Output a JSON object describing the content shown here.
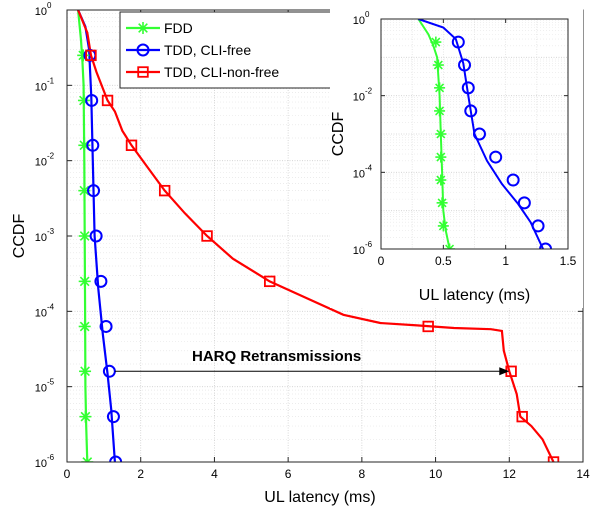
{
  "chart_data": [
    {
      "type": "line",
      "xlabel": "UL latency (ms)",
      "ylabel": "CCDF",
      "xlim": [
        0,
        14
      ],
      "ylim": [
        1e-06,
        1
      ],
      "yscale": "log",
      "grid": true,
      "legend_position": "top-left",
      "xticks": [
        "0",
        "2",
        "4",
        "6",
        "8",
        "10",
        "12",
        "14"
      ],
      "yticks": [
        {
          "base": "10",
          "exp": "-6"
        },
        {
          "base": "10",
          "exp": "-5"
        },
        {
          "base": "10",
          "exp": "-4"
        },
        {
          "base": "10",
          "exp": "-3"
        },
        {
          "base": "10",
          "exp": "-2"
        },
        {
          "base": "10",
          "exp": "-1"
        },
        {
          "base": "10",
          "exp": "0"
        }
      ],
      "annotation": {
        "text": "HARQ Retransmissions",
        "arrow_from": [
          1.3,
          1.6e-05
        ],
        "arrow_to": [
          12.0,
          1.6e-05
        ]
      },
      "series": [
        {
          "name": "FDD",
          "color": "#33ff33",
          "marker": "asterisk",
          "line": [
            [
              0.3,
              1
            ],
            [
              0.38,
              0.4
            ],
            [
              0.42,
              0.2
            ],
            [
              0.45,
              0.1
            ],
            [
              0.47,
              0.01
            ],
            [
              0.48,
              0.001
            ],
            [
              0.49,
              0.0001
            ],
            [
              0.5,
              1e-05
            ],
            [
              0.52,
              3e-06
            ],
            [
              0.55,
              1e-06
            ]
          ],
          "markers": [
            [
              0.44,
              0.25
            ],
            [
              0.46,
              0.063
            ],
            [
              0.47,
              0.016
            ],
            [
              0.47,
              0.004
            ],
            [
              0.48,
              0.001
            ],
            [
              0.48,
              0.00025
            ],
            [
              0.48,
              6.3e-05
            ],
            [
              0.49,
              1.6e-05
            ],
            [
              0.5,
              4e-06
            ],
            [
              0.55,
              1e-06
            ]
          ]
        },
        {
          "name": "TDD, CLI-free",
          "color": "#0000ff",
          "marker": "circle",
          "line": [
            [
              0.3,
              1
            ],
            [
              0.5,
              0.6
            ],
            [
              0.6,
              0.3
            ],
            [
              0.66,
              0.07
            ],
            [
              0.7,
              0.01
            ],
            [
              0.75,
              0.001
            ],
            [
              0.85,
              0.0002
            ],
            [
              0.97,
              5e-05
            ],
            [
              1.1,
              1.5e-05
            ],
            [
              1.2,
              5e-06
            ],
            [
              1.3,
              1e-06
            ]
          ],
          "markers": [
            [
              0.62,
              0.25
            ],
            [
              0.67,
              0.063
            ],
            [
              0.7,
              0.016
            ],
            [
              0.72,
              0.004
            ],
            [
              0.79,
              0.001
            ],
            [
              0.92,
              0.00025
            ],
            [
              1.06,
              6.3e-05
            ],
            [
              1.15,
              1.6e-05
            ],
            [
              1.26,
              4e-06
            ],
            [
              1.32,
              1e-06
            ]
          ]
        },
        {
          "name": "TDD, CLI-non-free",
          "color": "#ff0000",
          "marker": "square",
          "line": [
            [
              0.3,
              1
            ],
            [
              0.55,
              0.5
            ],
            [
              0.65,
              0.25
            ],
            [
              0.8,
              0.15
            ],
            [
              1.1,
              0.063
            ],
            [
              1.3,
              0.045
            ],
            [
              1.5,
              0.025
            ],
            [
              1.75,
              0.016
            ],
            [
              2.2,
              0.008
            ],
            [
              2.65,
              0.004
            ],
            [
              3.2,
              0.002
            ],
            [
              3.8,
              0.001
            ],
            [
              4.5,
              0.0005
            ],
            [
              5.5,
              0.00025
            ],
            [
              6.5,
              0.00015
            ],
            [
              7.5,
              9e-05
            ],
            [
              8.5,
              7e-05
            ],
            [
              9.5,
              6.5e-05
            ],
            [
              10.5,
              6e-05
            ],
            [
              11.5,
              5.8e-05
            ],
            [
              11.8,
              5.5e-05
            ],
            [
              11.85,
              3e-05
            ],
            [
              12.0,
              1.6e-05
            ],
            [
              12.2,
              8e-06
            ],
            [
              12.3,
              4e-06
            ],
            [
              12.6,
              3e-06
            ],
            [
              12.9,
              2e-06
            ],
            [
              13.2,
              1e-06
            ]
          ],
          "markers": [
            [
              0.65,
              0.25
            ],
            [
              1.1,
              0.063
            ],
            [
              1.75,
              0.016
            ],
            [
              2.65,
              0.004
            ],
            [
              3.8,
              0.001
            ],
            [
              5.5,
              0.00025
            ],
            [
              9.8,
              6.3e-05
            ],
            [
              12.05,
              1.6e-05
            ],
            [
              12.35,
              4e-06
            ],
            [
              13.2,
              1e-06
            ]
          ]
        }
      ]
    },
    {
      "type": "line",
      "inset": true,
      "xlabel": "UL latency (ms)",
      "ylabel": "CCDF",
      "xlim": [
        0,
        1.5
      ],
      "ylim": [
        1e-06,
        1
      ],
      "yscale": "log",
      "grid": true,
      "xticks": [
        "0",
        "0.5",
        "1",
        "1.5"
      ],
      "yticks": [
        {
          "base": "10",
          "exp": "-6"
        },
        {
          "base": "10",
          "exp": "-4"
        },
        {
          "base": "10",
          "exp": "-2"
        },
        {
          "base": "10",
          "exp": "0"
        }
      ],
      "series": [
        {
          "name": "FDD",
          "color": "#33ff33",
          "marker": "asterisk",
          "line": [
            [
              0.3,
              1
            ],
            [
              0.38,
              0.4
            ],
            [
              0.42,
              0.2
            ],
            [
              0.45,
              0.1
            ],
            [
              0.47,
              0.01
            ],
            [
              0.48,
              0.001
            ],
            [
              0.49,
              0.0001
            ],
            [
              0.5,
              1e-05
            ],
            [
              0.52,
              3e-06
            ],
            [
              0.55,
              1e-06
            ]
          ],
          "markers": [
            [
              0.44,
              0.25
            ],
            [
              0.46,
              0.063
            ],
            [
              0.47,
              0.016
            ],
            [
              0.47,
              0.004
            ],
            [
              0.48,
              0.001
            ],
            [
              0.48,
              0.00025
            ],
            [
              0.48,
              6.3e-05
            ],
            [
              0.49,
              1.6e-05
            ],
            [
              0.5,
              4e-06
            ],
            [
              0.55,
              1e-06
            ]
          ]
        },
        {
          "name": "TDD, CLI-free",
          "color": "#0000ff",
          "marker": "circle",
          "line": [
            [
              0.3,
              1
            ],
            [
              0.5,
              0.6
            ],
            [
              0.6,
              0.3
            ],
            [
              0.66,
              0.07
            ],
            [
              0.7,
              0.01
            ],
            [
              0.75,
              0.001
            ],
            [
              0.85,
              0.0002
            ],
            [
              0.97,
              5e-05
            ],
            [
              1.1,
              1.5e-05
            ],
            [
              1.2,
              5e-06
            ],
            [
              1.3,
              1e-06
            ]
          ],
          "markers": [
            [
              0.62,
              0.25
            ],
            [
              0.67,
              0.063
            ],
            [
              0.7,
              0.016
            ],
            [
              0.72,
              0.004
            ],
            [
              0.79,
              0.001
            ],
            [
              0.92,
              0.00025
            ],
            [
              1.06,
              6.3e-05
            ],
            [
              1.15,
              1.6e-05
            ],
            [
              1.26,
              4e-06
            ],
            [
              1.32,
              1e-06
            ]
          ]
        }
      ]
    }
  ]
}
